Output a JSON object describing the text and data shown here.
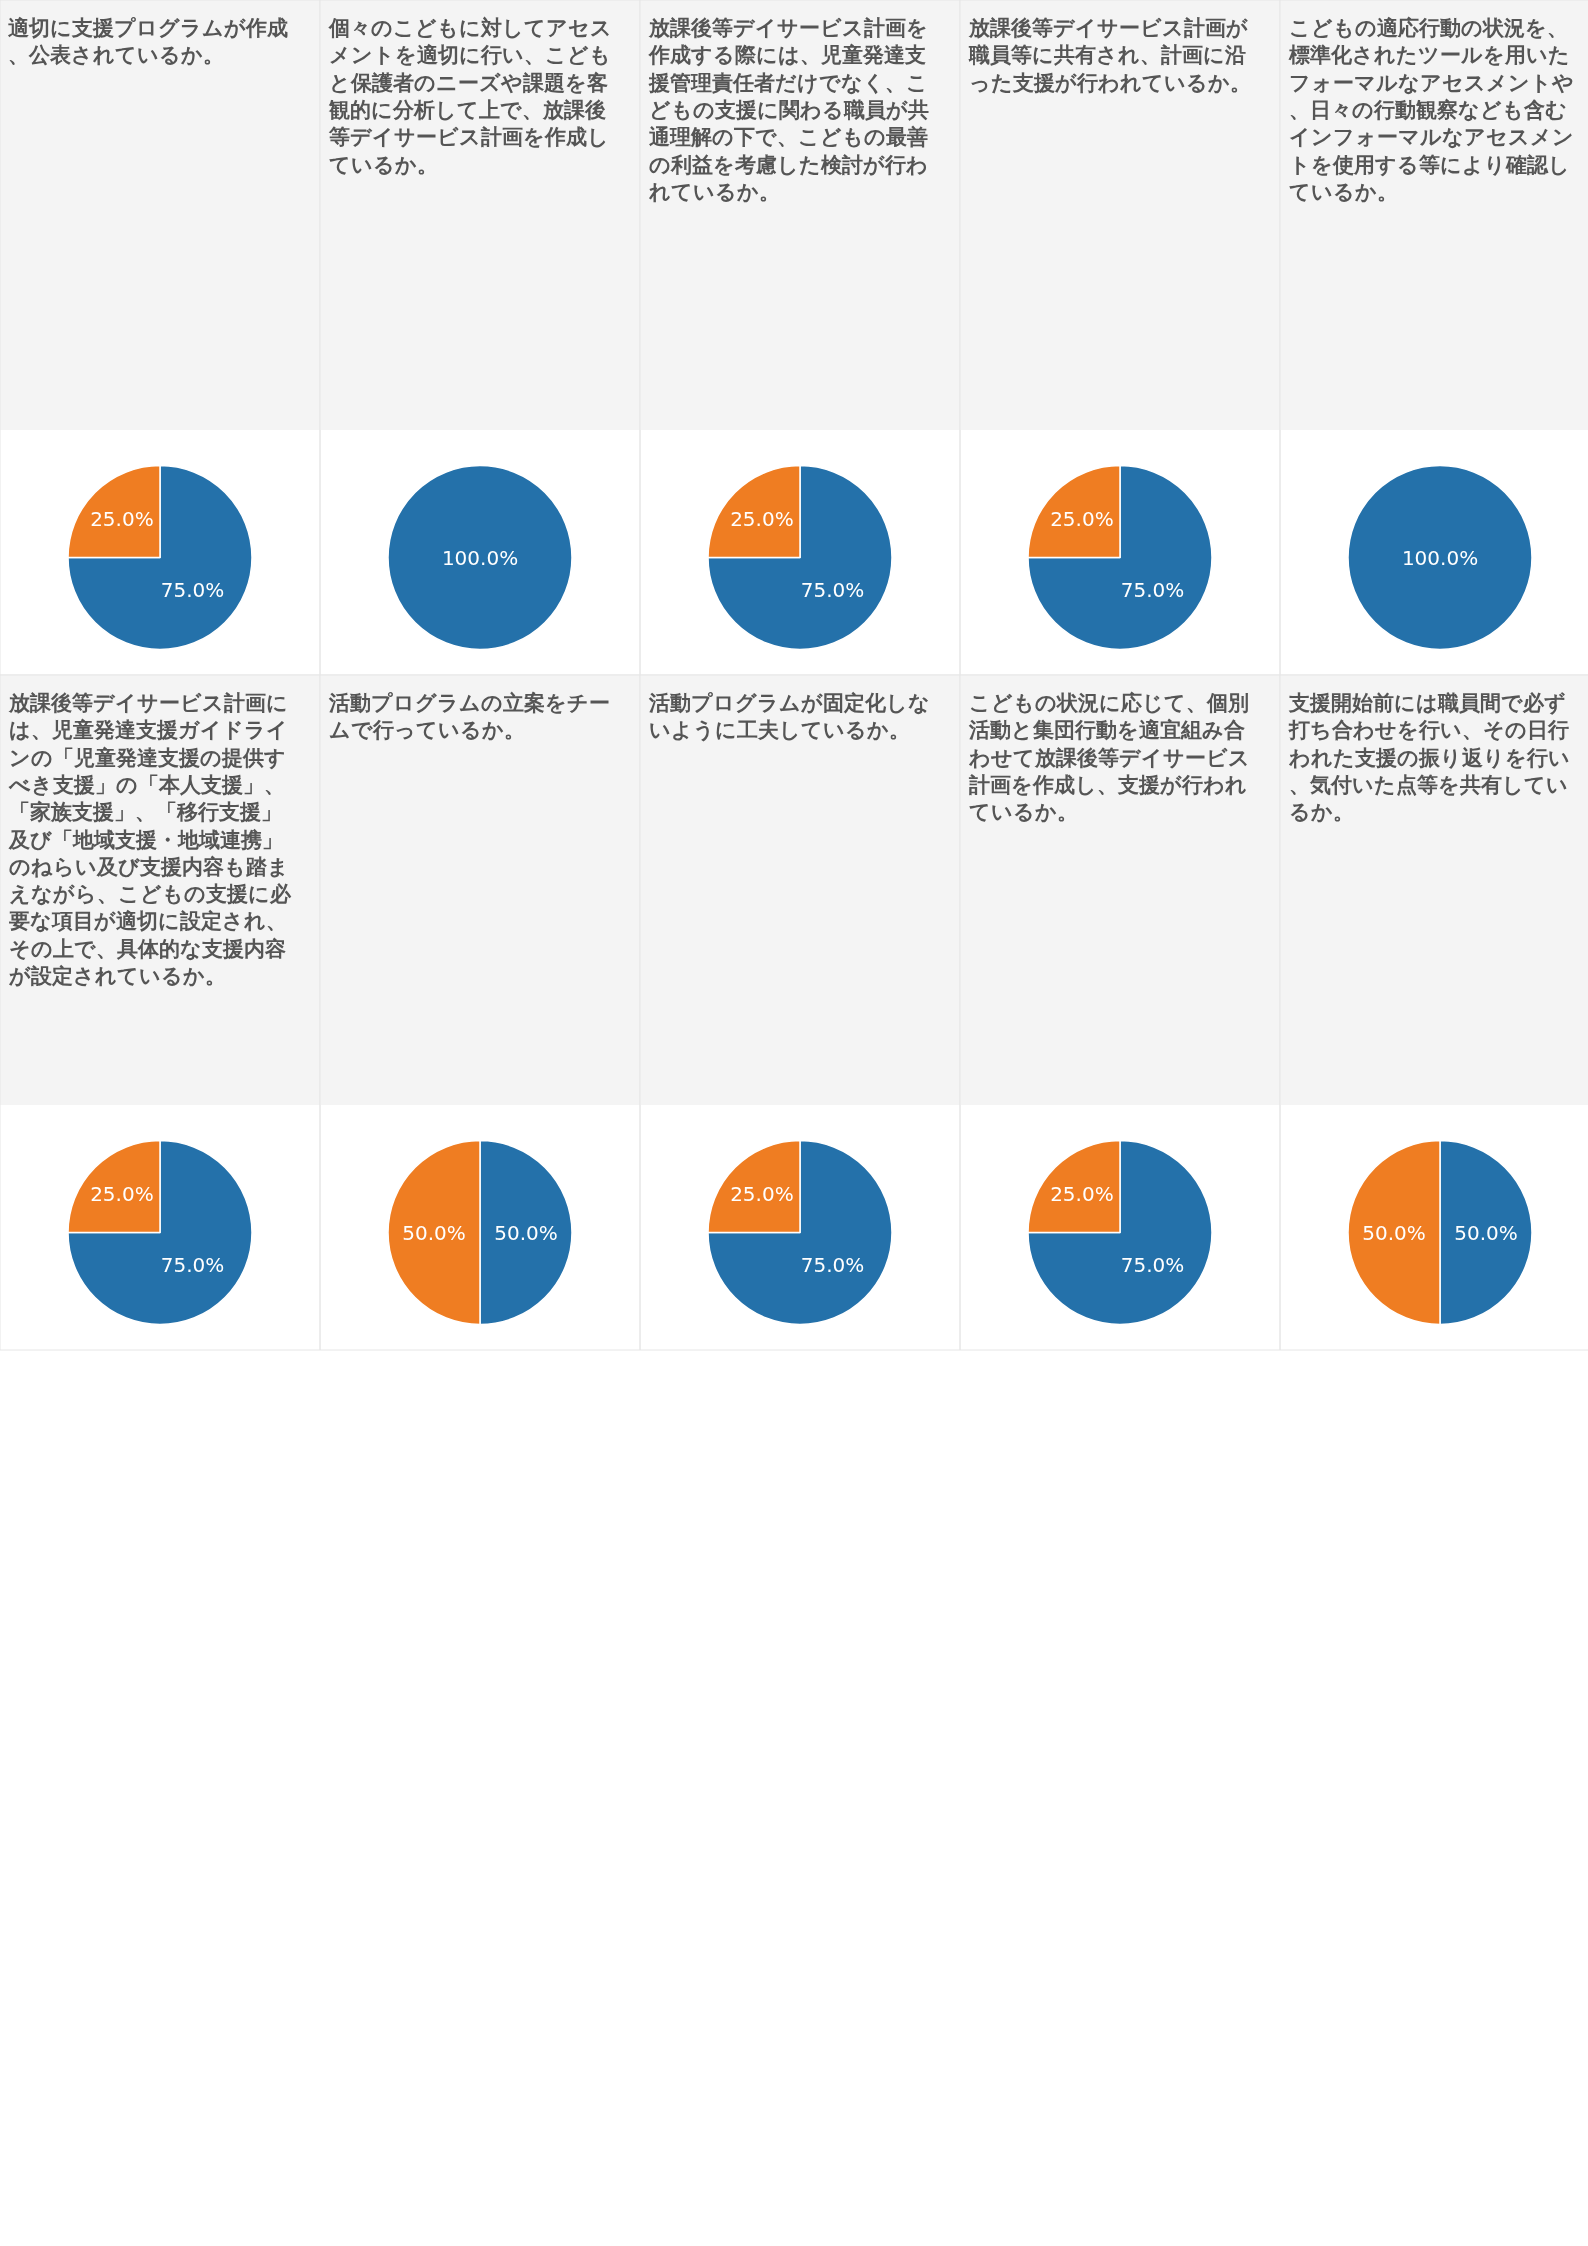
{
  "chart_data": [
    {
      "type": "pie",
      "title": "適切に支援プログラムが作成、公表されているか。",
      "categories": [
        null,
        null
      ],
      "values": [
        75,
        25
      ],
      "colors": [
        "#2471aa",
        "#ef7d22"
      ],
      "value_labels": [
        "75.0%",
        "25.0%"
      ]
    },
    {
      "type": "pie",
      "title": "個々のこどもに対してアセスメントを適切に行い、こどもと保護者のニーズや課題を客観的に分析して上で、放課後等デイサービス計画を作成しているか。",
      "categories": [
        null
      ],
      "values": [
        100
      ],
      "colors": [
        "#2471aa"
      ],
      "value_labels": [
        "100.0%"
      ]
    },
    {
      "type": "pie",
      "title": "放課後等デイサービス計画を作成する際には、児童発達支援管理責任者だけでなく、こどもの支援に関わる職員が共通理解の下で、こどもの最善の利益を考慮した検討が行われているか。",
      "categories": [
        null,
        null
      ],
      "values": [
        75,
        25
      ],
      "colors": [
        "#2471aa",
        "#ef7d22"
      ],
      "value_labels": [
        "75.0%",
        "25.0%"
      ]
    },
    {
      "type": "pie",
      "title": "放課後等デイサービス計画が職員等に共有され、計画に沿った支援が行われているか。",
      "categories": [
        null,
        null
      ],
      "values": [
        75,
        25
      ],
      "colors": [
        "#2471aa",
        "#ef7d22"
      ],
      "value_labels": [
        "75.0%",
        "25.0%"
      ]
    },
    {
      "type": "pie",
      "title": "こどもの適応行動の状況を、標準化されたツールを用いたフォーマルなアセスメントや、日々の行動観察なども含むインフォーマルなアセスメントを使用する等により確認しているか。",
      "categories": [
        null
      ],
      "values": [
        100
      ],
      "colors": [
        "#2471aa"
      ],
      "value_labels": [
        "100.0%"
      ]
    },
    {
      "type": "pie",
      "title": "放課後等デイサービス計画には、児童発達支援ガイドラインの「児童発達支援の提供すべき支援」の「本人支援」、「家族支援」、「移行支援」及び「地域支援・地域連携」のねらい及び支援内容も踏まえながら、こどもの支援に必要な項目が適切に設定され、その上で、具体的な支援内容が設定されているか。",
      "categories": [
        null,
        null
      ],
      "values": [
        75,
        25
      ],
      "colors": [
        "#2471aa",
        "#ef7d22"
      ],
      "value_labels": [
        "75.0%",
        "25.0%"
      ]
    },
    {
      "type": "pie",
      "title": "活動プログラムの立案をチームで行っているか。",
      "categories": [
        null,
        null
      ],
      "values": [
        50,
        50
      ],
      "colors": [
        "#2471aa",
        "#ef7d22"
      ],
      "value_labels": [
        "50.0%",
        "50.0%"
      ]
    },
    {
      "type": "pie",
      "title": "活動プログラムが固定化しないように工夫しているか。",
      "categories": [
        null,
        null
      ],
      "values": [
        75,
        25
      ],
      "colors": [
        "#2471aa",
        "#ef7d22"
      ],
      "value_labels": [
        "75.0%",
        "25.0%"
      ]
    },
    {
      "type": "pie",
      "title": "こどもの状況に応じて、個別活動と集団行動を適宜組み合わせて放課後等デイサービス計画を作成し、支援が行われているか。",
      "categories": [
        null,
        null
      ],
      "values": [
        75,
        25
      ],
      "colors": [
        "#2471aa",
        "#ef7d22"
      ],
      "value_labels": [
        "75.0%",
        "25.0%"
      ]
    },
    {
      "type": "pie",
      "title": "支援開始前には職員間で必ず打ち合わせを行い、その日行われた支援の振り返りを行い、気付いた点等を共有しているか。",
      "categories": [
        null,
        null
      ],
      "values": [
        50,
        50
      ],
      "colors": [
        "#2471aa",
        "#ef7d22"
      ],
      "value_labels": [
        "50.0%",
        "50.0%"
      ]
    }
  ]
}
